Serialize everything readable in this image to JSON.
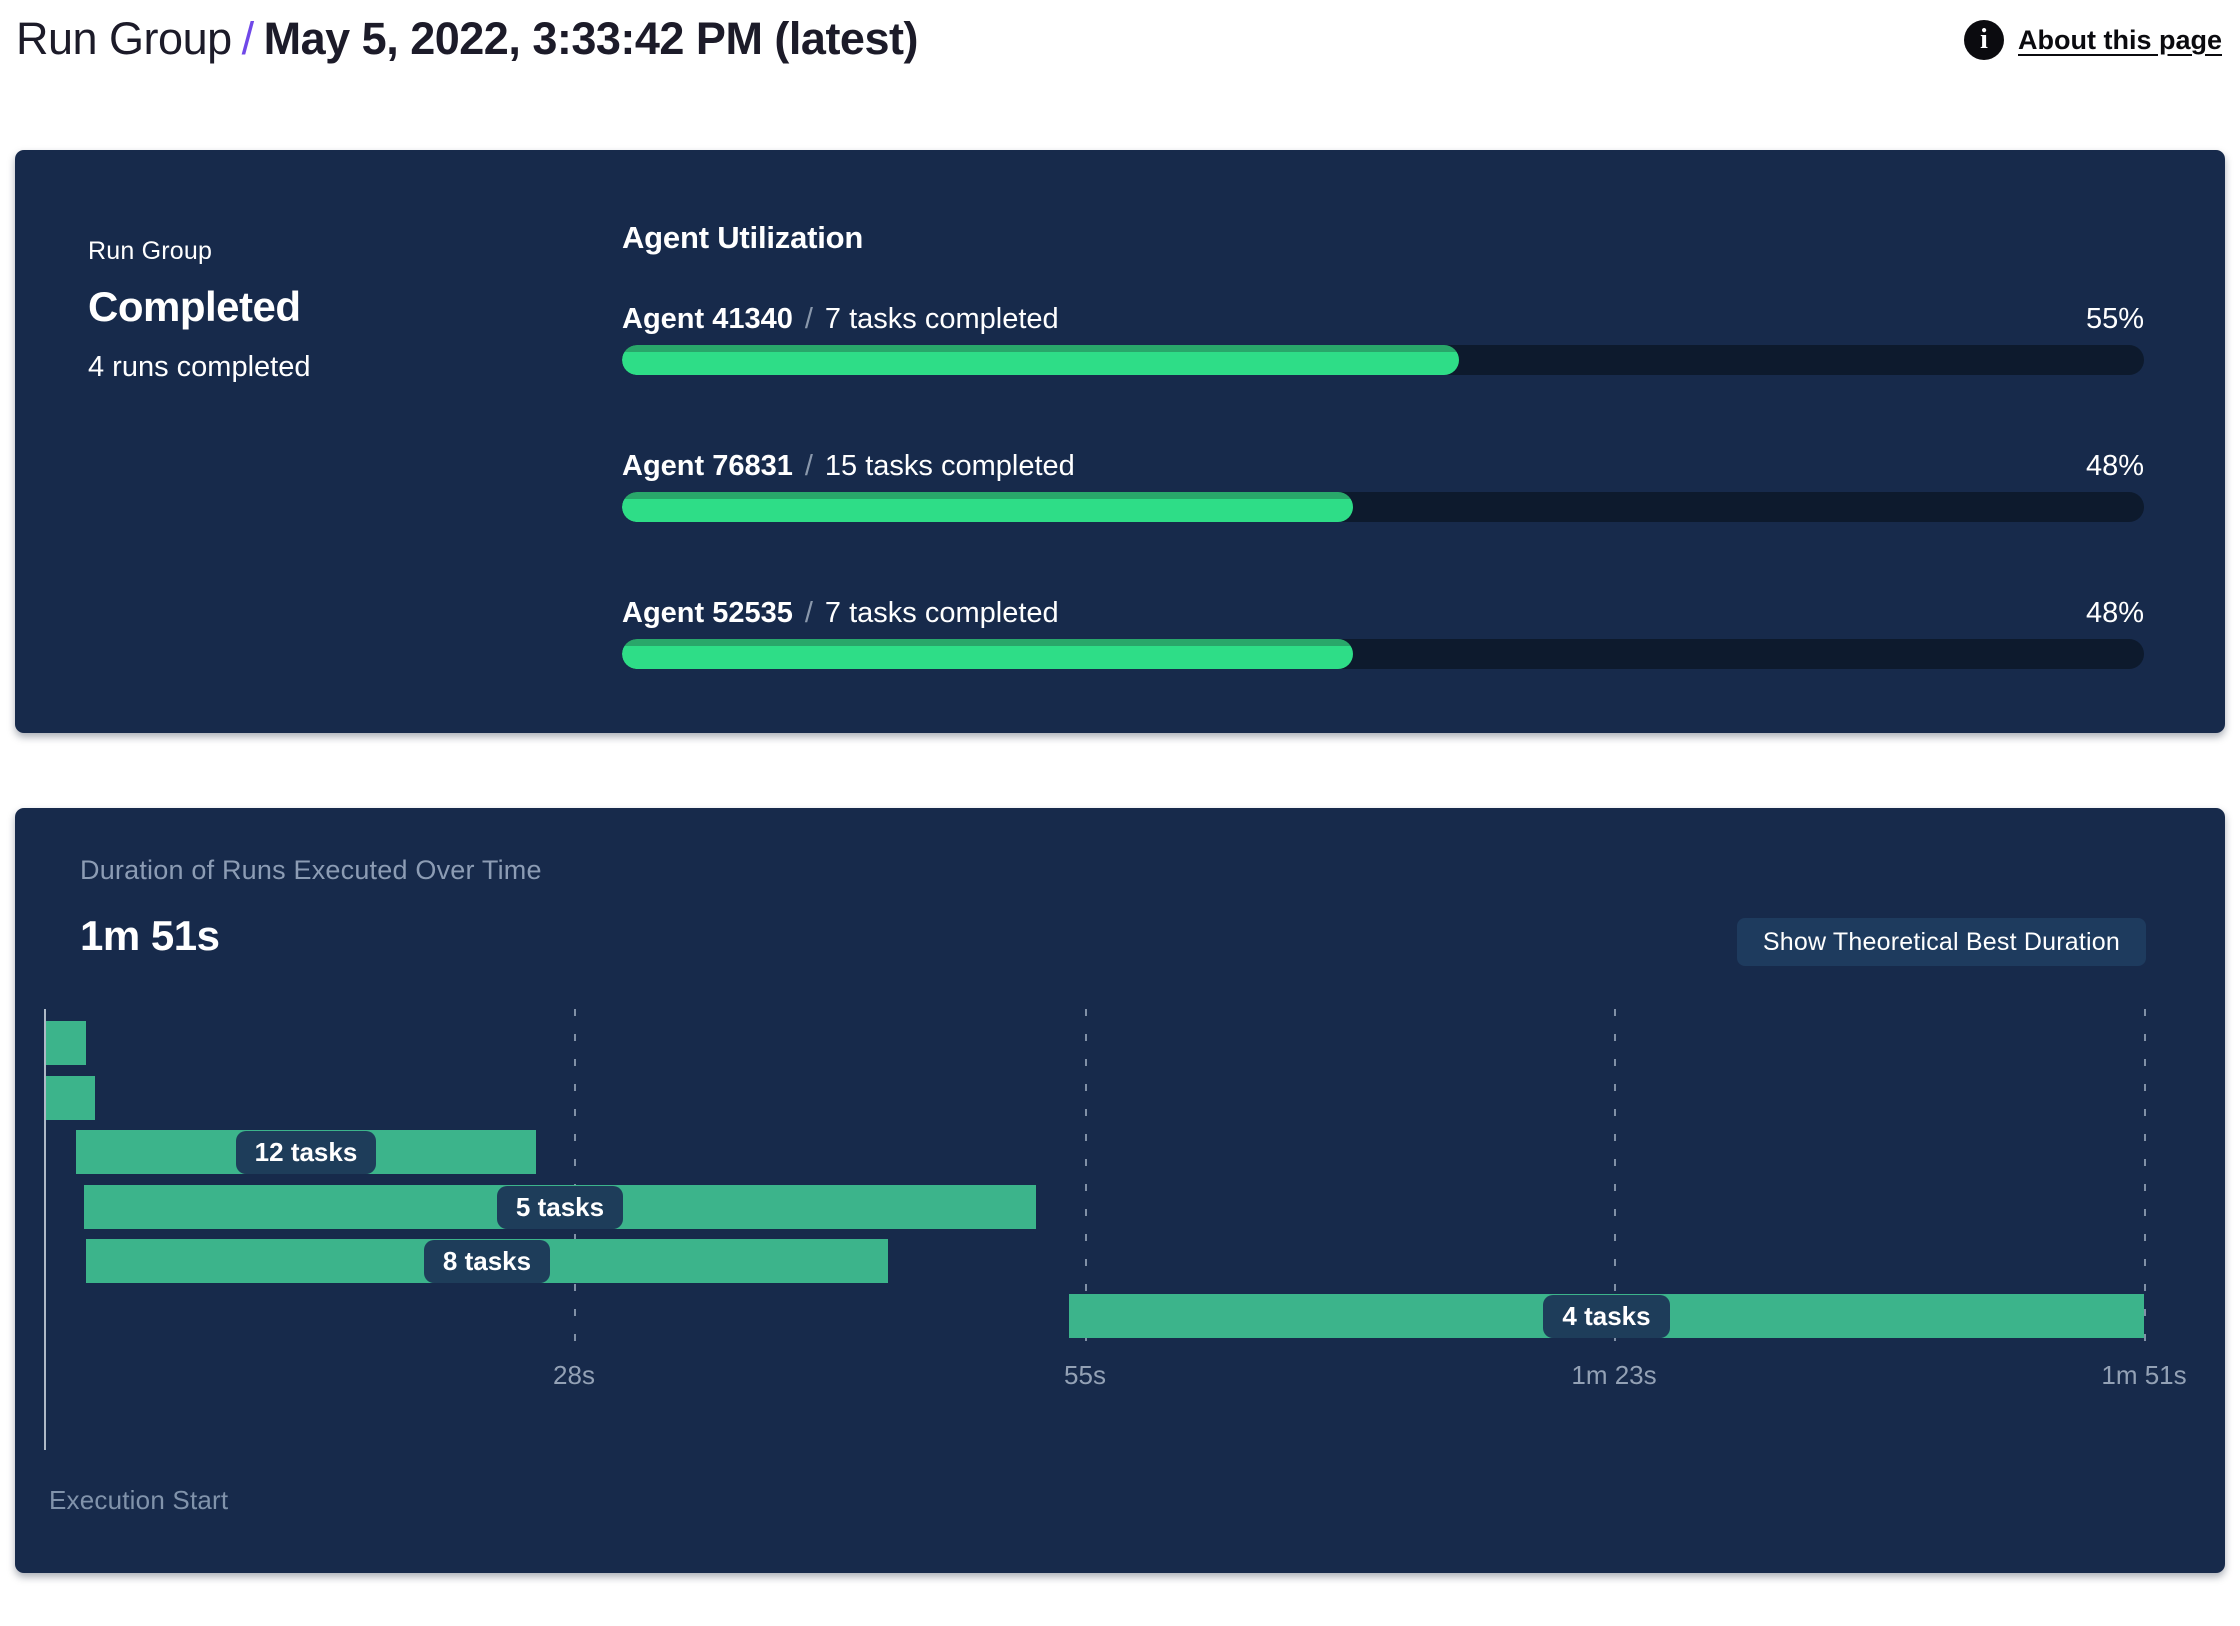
{
  "header": {
    "breadcrumb_root": "Run Group",
    "separator": "/",
    "title": "May 5, 2022, 3:33:42 PM (latest)",
    "about_link": "About this page",
    "info_icon": "info-icon",
    "accent_color": "#7048e8"
  },
  "summary_panel": {
    "label": "Run Group",
    "status": "Completed",
    "runs_completed": "4 runs completed",
    "section_title": "Agent Utilization",
    "agents": [
      {
        "name": "Agent 41340",
        "tasks": "7 tasks completed",
        "percent": 55,
        "percent_label": "55%"
      },
      {
        "name": "Agent 76831",
        "tasks": "15 tasks completed",
        "percent": 48,
        "percent_label": "48%"
      },
      {
        "name": "Agent 52535",
        "tasks": "7 tasks completed",
        "percent": 48,
        "percent_label": "48%"
      }
    ],
    "colors": {
      "panel_bg": "#172a4b",
      "progress_track": "#0d1a2d",
      "progress_fill": "#2edd87",
      "progress_fill_edge": "#29a76a"
    }
  },
  "duration_panel": {
    "subtitle": "Duration of Runs Executed Over Time",
    "total_duration": "1m 51s",
    "button_label": "Show Theoretical Best Duration",
    "execution_start_label": "Execution Start",
    "colors": {
      "button_bg": "#1e3b5e",
      "bar_green": "#3cb48b",
      "pill_bg": "#1e3d5a",
      "axis_text": "#93a1b5"
    }
  },
  "chart_data": {
    "type": "gantt",
    "title": "Duration of Runs Executed Over Time",
    "total_duration_label": "1m 51s",
    "total_duration_s": 111,
    "x_axis_start_label": "Execution Start",
    "axis_ticks": [
      {
        "label": "28s",
        "s": 28
      },
      {
        "label": "55s",
        "s": 55
      },
      {
        "label": "1m 23s",
        "s": 83
      },
      {
        "label": "1m 51s",
        "s": 111
      }
    ],
    "runs": [
      {
        "label": "",
        "start_s": 0.1,
        "end_s": 2.2
      },
      {
        "label": "",
        "start_s": 0.1,
        "end_s": 2.7
      },
      {
        "label": "12 tasks",
        "start_s": 1.7,
        "end_s": 26.0
      },
      {
        "label": "5 tasks",
        "start_s": 2.1,
        "end_s": 52.4
      },
      {
        "label": "8 tasks",
        "start_s": 2.2,
        "end_s": 44.6
      },
      {
        "label": "4 tasks",
        "start_s": 54.2,
        "end_s": 111.0
      }
    ]
  }
}
